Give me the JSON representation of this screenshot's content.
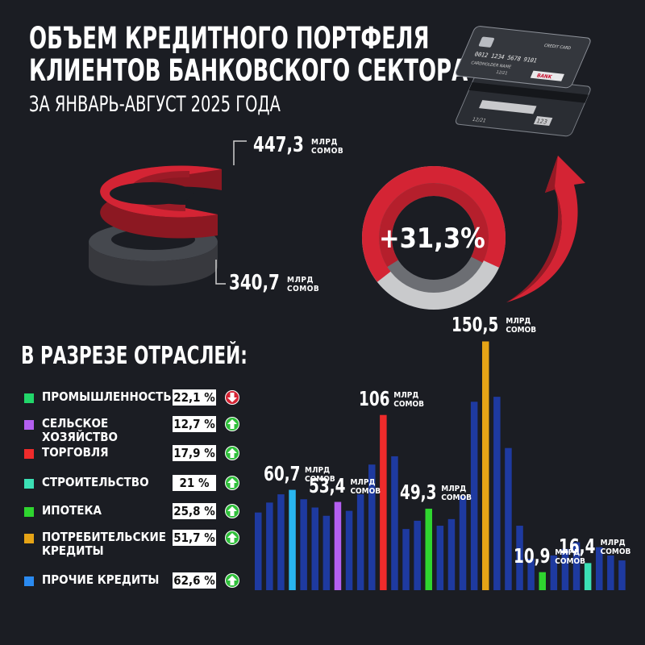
{
  "title_line1": "ОБЪЕМ КРЕДИТНОГО ПОРТФЕЛЯ",
  "title_line2": "КЛИЕНТОВ БАНКОВСКОГО СЕКТОРА",
  "subtitle": "ЗА ЯНВАРЬ-АВГУСТ 2025 ГОДА",
  "card": {
    "number": "0012 1234 5678 9101",
    "label": "CREDIT CARD",
    "holder": "CARDHOLDER NAME",
    "expiry": "12/21",
    "bank": "BANK",
    "cvc": "123"
  },
  "totals": {
    "current": {
      "value": "447,3",
      "unit_line1": "МЛРД",
      "unit_line2": "СОМОВ"
    },
    "previous": {
      "value": "340,7",
      "unit_line1": "МЛРД",
      "unit_line2": "СОМОВ"
    }
  },
  "growth_label": "+31,3%",
  "section_title": "В РАЗРЕЗЕ ОТРАСЛЕЙ:",
  "sectors": [
    {
      "name": "ПРОМЫШЛЕННОСТЬ",
      "pct": "22,1 %",
      "trend": "down",
      "color": "#22d66a"
    },
    {
      "name": "СЕЛЬСКОЕ ХОЗЯЙСТВО",
      "pct": "12,7 %",
      "trend": "up",
      "color": "#b45ff0"
    },
    {
      "name": "ТОРГОВЛЯ",
      "pct": "17,9 %",
      "trend": "up",
      "color": "#ef2b2b"
    },
    {
      "name": "СТРОИТЕЛЬСТВО",
      "pct": "21 %",
      "trend": "up",
      "color": "#3be0b5"
    },
    {
      "name": "ИПОТЕКА",
      "pct": "25,8 %",
      "trend": "up",
      "color": "#2fd52f"
    },
    {
      "name": "ПОТРЕБИТЕЛЬСКИЕ КРЕДИТЫ",
      "pct": "51,7 %",
      "trend": "up",
      "color": "#e6a416"
    },
    {
      "name": "ПРОЧИЕ КРЕДИТЫ",
      "pct": "62,6 %",
      "trend": "up",
      "color": "#2a8af0"
    }
  ],
  "chart_data": {
    "type": "bar",
    "bars": [
      {
        "value": 47,
        "color": "#1e3aa0"
      },
      {
        "value": 53,
        "color": "#1e3aa0"
      },
      {
        "value": 58,
        "color": "#1e3aa0"
      },
      {
        "value": 60.7,
        "color": "#29b6f0",
        "label": "60,7"
      },
      {
        "value": 55,
        "color": "#1e3aa0"
      },
      {
        "value": 50,
        "color": "#1e3aa0"
      },
      {
        "value": 45,
        "color": "#1e3aa0"
      },
      {
        "value": 53.4,
        "color": "#b45ff0",
        "label": "53,4"
      },
      {
        "value": 48,
        "color": "#1e3aa0"
      },
      {
        "value": 58,
        "color": "#1e3aa0"
      },
      {
        "value": 76,
        "color": "#1e3aa0"
      },
      {
        "value": 106,
        "color": "#ef2b2b",
        "label": "106"
      },
      {
        "value": 81,
        "color": "#1e3aa0"
      },
      {
        "value": 37,
        "color": "#1e3aa0"
      },
      {
        "value": 42,
        "color": "#1e3aa0"
      },
      {
        "value": 49.3,
        "color": "#2fd52f",
        "label": "49,3"
      },
      {
        "value": 39,
        "color": "#1e3aa0"
      },
      {
        "value": 43,
        "color": "#1e3aa0"
      },
      {
        "value": 57,
        "color": "#1e3aa0"
      },
      {
        "value": 114,
        "color": "#1e3aa0"
      },
      {
        "value": 150.5,
        "color": "#e6a416",
        "label": "150,5"
      },
      {
        "value": 117,
        "color": "#1e3aa0"
      },
      {
        "value": 86,
        "color": "#1e3aa0"
      },
      {
        "value": 39,
        "color": "#1e3aa0"
      },
      {
        "value": 19,
        "color": "#1e3aa0"
      },
      {
        "value": 10.9,
        "color": "#2fd52f",
        "label": "10,9"
      },
      {
        "value": 21,
        "color": "#1e3aa0"
      },
      {
        "value": 25,
        "color": "#1e3aa0"
      },
      {
        "value": 29,
        "color": "#1e3aa0"
      },
      {
        "value": 16.4,
        "color": "#3be0b5",
        "label": "16,4"
      },
      {
        "value": 26,
        "color": "#1e3aa0"
      },
      {
        "value": 21,
        "color": "#1e3aa0"
      },
      {
        "value": 18,
        "color": "#1e3aa0"
      }
    ],
    "label_unit_line1": "МЛРД",
    "label_unit_line2": "СОМОВ"
  },
  "colors": {
    "background": "#1b1d23",
    "accent_red": "#d42434",
    "gray": "#6c6e73"
  }
}
